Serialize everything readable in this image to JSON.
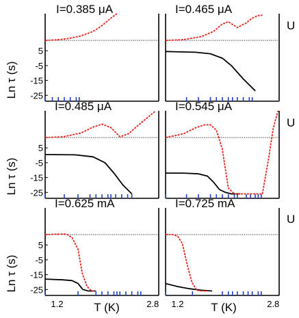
{
  "figure": {
    "ylabel": "Ln τ (s)",
    "xlabel": "T (K)",
    "right_label": "U"
  },
  "colors": {
    "tau_line": "#000000",
    "potential_curve": "#e8241c",
    "reference_line": "#000000",
    "rug": "#1f3fd0",
    "axis": "#000000"
  },
  "chart_data": [
    {
      "type": "line",
      "title": "I=0.385 μA",
      "xlim": [
        1.0,
        2.9
      ],
      "ylim": [
        -29,
        30
      ],
      "yticks": [
        5,
        -5,
        -15,
        -25
      ],
      "xticks": [],
      "reference_y": 12,
      "potential": {
        "x": [
          1.0,
          1.2,
          1.4,
          1.6,
          1.8,
          1.9,
          2.0,
          2.1,
          2.2
        ],
        "y": [
          12,
          12.4,
          13.3,
          15,
          18,
          20.5,
          23.6,
          27,
          30
        ]
      },
      "tau": {
        "x": [],
        "y": []
      },
      "rug": [
        1.0,
        1.12,
        1.22,
        1.32,
        1.42,
        1.52,
        1.57
      ]
    },
    {
      "type": "line",
      "title": "I=0.465 μA",
      "xlim": [
        1.0,
        2.9
      ],
      "ylim": [
        -29,
        30
      ],
      "yticks": [],
      "xticks": [],
      "reference_y": 12,
      "potential": {
        "x": [
          1.0,
          1.3,
          1.6,
          1.8,
          1.95,
          2.05,
          2.2,
          2.35,
          2.45,
          2.55,
          2.62
        ],
        "y": [
          12,
          12.5,
          14.5,
          18,
          23,
          24.6,
          20.7,
          23.8,
          27,
          28.7,
          29
        ]
      },
      "tau": {
        "x": [
          1.0,
          1.5,
          1.75,
          1.95,
          2.1,
          2.3,
          2.5
        ],
        "y": [
          4.5,
          4,
          3,
          0,
          -5,
          -14,
          -22
        ]
      },
      "rug": [
        1.35,
        1.55,
        1.75,
        1.85,
        1.95,
        2.05,
        2.12,
        2.2,
        2.3,
        2.4,
        2.45
      ]
    },
    {
      "type": "line",
      "title": "I=0.485 μA",
      "xlim": [
        1.0,
        2.9
      ],
      "ylim": [
        -29,
        30
      ],
      "yticks": [
        5,
        -5,
        -15,
        -25
      ],
      "xticks": [],
      "reference_y": 12,
      "potential": {
        "x": [
          1.0,
          1.3,
          1.6,
          1.8,
          1.95,
          2.1,
          2.25,
          2.4,
          2.55,
          2.7,
          2.85
        ],
        "y": [
          12,
          12.5,
          15,
          19,
          21,
          18.7,
          12.5,
          14.6,
          20,
          25,
          30
        ]
      },
      "tau": {
        "x": [
          1.0,
          1.5,
          1.8,
          2.0,
          2.15,
          2.3,
          2.45
        ],
        "y": [
          0.5,
          0.3,
          -1,
          -5,
          -12,
          -20,
          -26
        ]
      },
      "rug": [
        1.0,
        1.32,
        1.55,
        1.75,
        1.85,
        1.95,
        2.05,
        2.1,
        2.18,
        2.28,
        2.38,
        2.45
      ]
    },
    {
      "type": "line",
      "title": "I=0.545 μA",
      "xlim": [
        1.0,
        2.9
      ],
      "ylim": [
        -29,
        30
      ],
      "yticks": [],
      "xticks": [],
      "reference_y": 12,
      "potential": {
        "x": [
          1.0,
          1.3,
          1.5,
          1.65,
          1.75,
          1.85,
          1.95,
          2.05,
          2.15,
          2.3,
          2.5,
          2.62,
          2.72,
          2.8,
          2.88
        ],
        "y": [
          12,
          14.5,
          18.5,
          20.5,
          20.6,
          17,
          4,
          -22,
          -26,
          -26,
          -26,
          -26,
          -3,
          18,
          30
        ]
      },
      "tau": {
        "x": [
          1.0,
          1.3,
          1.55,
          1.7,
          1.8,
          1.9,
          2.0,
          2.1,
          2.25
        ],
        "y": [
          -12,
          -12,
          -12.5,
          -14,
          -18,
          -23,
          -25,
          -26,
          -26
        ]
      },
      "rug": [
        1.0,
        1.35,
        1.55,
        1.75,
        1.85,
        1.95,
        2.05,
        2.15,
        2.2,
        2.35,
        2.42,
        2.5,
        2.55,
        2.6
      ]
    },
    {
      "type": "line",
      "title": "I=0.625 mA",
      "xlim": [
        1.0,
        2.9
      ],
      "ylim": [
        -29,
        30
      ],
      "yticks": [
        5,
        -5,
        -15,
        -25
      ],
      "xticks": [
        1.2,
        2.8
      ],
      "reference_y": 12,
      "potential": {
        "x": [
          1.0,
          1.2,
          1.35,
          1.45,
          1.55,
          1.62,
          1.7,
          1.78,
          1.85
        ],
        "y": [
          12,
          12.3,
          12.4,
          10,
          2,
          -14,
          -23,
          -26,
          -26
        ]
      },
      "tau": {
        "x": [
          1.0,
          1.3,
          1.45,
          1.55,
          1.63,
          1.72,
          1.85
        ],
        "y": [
          -18,
          -18.5,
          -19,
          -21,
          -25,
          -26,
          -26
        ]
      },
      "rug": [
        1.0,
        1.55,
        1.85,
        1.95,
        2.05,
        2.15,
        2.2,
        2.25,
        2.35,
        2.45,
        2.55,
        2.6
      ]
    },
    {
      "type": "line",
      "title": "I=0.725 mA",
      "xlim": [
        1.0,
        2.9
      ],
      "ylim": [
        -29,
        30
      ],
      "yticks": [],
      "xticks": [
        1.2,
        2.8
      ],
      "reference_y": 12,
      "potential": {
        "x": [
          1.0,
          1.12,
          1.2,
          1.28,
          1.36,
          1.44,
          1.52,
          1.6,
          1.7
        ],
        "y": [
          12,
          12,
          11,
          6,
          -8,
          -20,
          -25.5,
          -26,
          -26
        ]
      },
      "tau": {
        "x": [
          1.0,
          1.2,
          1.4,
          1.6,
          1.78
        ],
        "y": [
          -21,
          -23,
          -24.5,
          -25.5,
          -26
        ]
      },
      "rug": [
        1.0,
        1.45,
        1.95,
        2.05,
        2.12,
        2.2,
        2.3,
        2.38,
        2.45,
        2.55,
        2.6
      ]
    }
  ]
}
